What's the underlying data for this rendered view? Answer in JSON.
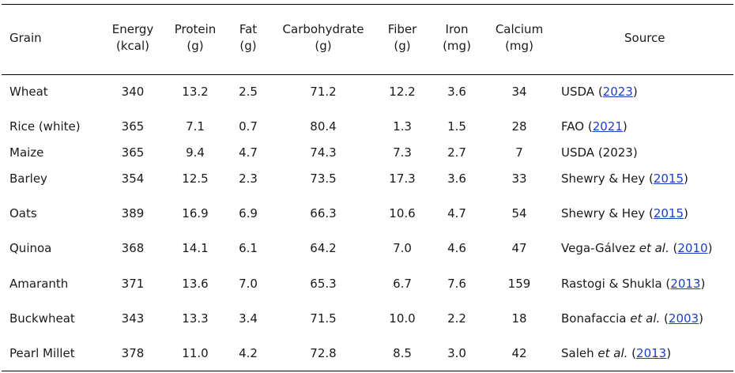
{
  "table": {
    "columns": [
      {
        "line1": "Grain",
        "line2": ""
      },
      {
        "line1": "Energy",
        "line2": "(kcal)"
      },
      {
        "line1": "Protein",
        "line2": "(g)"
      },
      {
        "line1": "Fat",
        "line2": "(g)"
      },
      {
        "line1": "Carbohydrate",
        "line2": "(g)"
      },
      {
        "line1": "Fiber",
        "line2": "(g)"
      },
      {
        "line1": "Iron",
        "line2": "(mg)"
      },
      {
        "line1": "Calcium",
        "line2": "(mg)"
      },
      {
        "line1": "Source",
        "line2": ""
      }
    ],
    "rows": [
      {
        "grain": "Wheat",
        "energy": "340",
        "protein": "13.2",
        "fat": "2.5",
        "carb": "71.2",
        "fiber": "12.2",
        "iron": "3.6",
        "calcium": "34",
        "src": {
          "pre": "USDA (",
          "ital": "",
          "mid": "",
          "year": "2023",
          "year_link": true,
          "post": ")"
        }
      },
      {
        "grain": "Rice (white)",
        "energy": "365",
        "protein": "7.1",
        "fat": "0.7",
        "carb": "80.4",
        "fiber": "1.3",
        "iron": "1.5",
        "calcium": "28",
        "src": {
          "pre": "FAO (",
          "ital": "",
          "mid": "",
          "year": "2021",
          "year_link": true,
          "post": ")"
        }
      },
      {
        "grain": "Maize",
        "energy": "365",
        "protein": "9.4",
        "fat": "4.7",
        "carb": "74.3",
        "fiber": "7.3",
        "iron": "2.7",
        "calcium": "7",
        "src": {
          "pre": "USDA (",
          "ital": "",
          "mid": "",
          "year": "2023",
          "year_link": false,
          "post": ")"
        }
      },
      {
        "grain": "Barley",
        "energy": "354",
        "protein": "12.5",
        "fat": "2.3",
        "carb": "73.5",
        "fiber": "17.3",
        "iron": "3.6",
        "calcium": "33",
        "src": {
          "pre": "Shewry & Hey (",
          "ital": "",
          "mid": "",
          "year": "2015",
          "year_link": true,
          "post": ")"
        }
      },
      {
        "grain": "Oats",
        "energy": "389",
        "protein": "16.9",
        "fat": "6.9",
        "carb": "66.3",
        "fiber": "10.6",
        "iron": "4.7",
        "calcium": "54",
        "src": {
          "pre": "Shewry & Hey (",
          "ital": "",
          "mid": "",
          "year": "2015",
          "year_link": true,
          "post": ")"
        }
      },
      {
        "grain": "Quinoa",
        "energy": "368",
        "protein": "14.1",
        "fat": "6.1",
        "carb": "64.2",
        "fiber": "7.0",
        "iron": "4.6",
        "calcium": "47",
        "src": {
          "pre": "Vega-Gálvez ",
          "ital": "et al.",
          "mid": " (",
          "year": "2010",
          "year_link": true,
          "post": ")"
        }
      },
      {
        "grain": "Amaranth",
        "energy": "371",
        "protein": "13.6",
        "fat": "7.0",
        "carb": "65.3",
        "fiber": "6.7",
        "iron": "7.6",
        "calcium": "159",
        "src": {
          "pre": "Rastogi & Shukla (",
          "ital": "",
          "mid": "",
          "year": "2013",
          "year_link": true,
          "post": ")"
        }
      },
      {
        "grain": "Buckwheat",
        "energy": "343",
        "protein": "13.3",
        "fat": "3.4",
        "carb": "71.5",
        "fiber": "10.0",
        "iron": "2.2",
        "calcium": "18",
        "src": {
          "pre": "Bonafaccia ",
          "ital": "et al.",
          "mid": " (",
          "year": "2003",
          "year_link": true,
          "post": ")"
        }
      },
      {
        "grain": "Pearl Millet",
        "energy": "378",
        "protein": "11.0",
        "fat": "4.2",
        "carb": "72.8",
        "fiber": "8.5",
        "iron": "3.0",
        "calcium": "42",
        "src": {
          "pre": "Saleh ",
          "ital": "et al.",
          "mid": " (",
          "year": "2013",
          "year_link": true,
          "post": ")"
        }
      }
    ],
    "colors": {
      "text": "#1a1a1a",
      "link": "#1a3fc4",
      "rule": "#000000"
    }
  }
}
